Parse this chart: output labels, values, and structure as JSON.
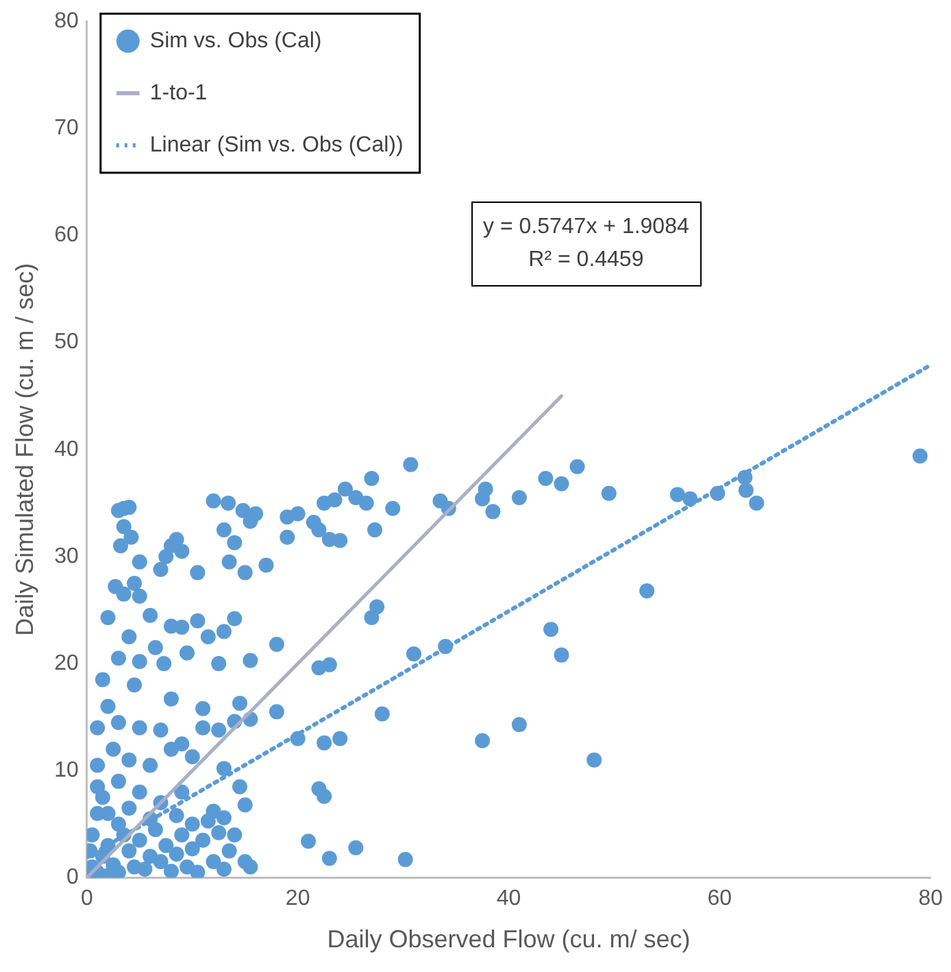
{
  "chart_data": {
    "type": "scatter",
    "xlabel": "Daily Observed Flow (cu. m/ sec)",
    "ylabel": "Daily Simulated Flow (cu. m / sec)",
    "xlim": [
      0,
      80
    ],
    "xticks": [
      0,
      20,
      40,
      60,
      80
    ],
    "ylim": [
      0,
      80
    ],
    "yticks": [
      0,
      10,
      20,
      30,
      40,
      50,
      60,
      70,
      80
    ],
    "grid": false,
    "legend": "top left",
    "annotations": [
      "y = 0.5747x + 1.9084",
      "R² = 0.4459"
    ],
    "series": [
      {
        "name": "Sim vs. Obs (Cal)",
        "type": "scatter",
        "marker": "circle",
        "color": "#5b9bd5",
        "x": [
          12,
          13.4,
          14.8,
          15.5,
          19,
          20,
          21.5,
          22.5,
          23.5,
          24.5,
          25.5,
          26.5,
          27,
          27.3,
          29,
          30.7,
          33.5,
          34.3,
          37.5,
          37.8,
          38.5,
          41,
          43.5,
          45,
          46.5,
          49.5,
          56,
          57.2,
          59.8,
          62.4,
          62.5,
          63.5,
          79,
          13,
          13.5,
          14,
          15,
          16,
          17,
          19,
          22,
          23,
          24,
          27,
          27.5,
          31,
          34,
          22,
          23,
          28,
          20,
          22.5,
          24,
          22,
          22.5,
          21,
          23,
          25.5,
          30.2,
          37.5,
          41,
          44,
          45,
          48.1,
          53.1,
          18,
          18,
          3,
          3.5,
          4,
          3.5,
          3.2,
          4.2,
          5,
          4.5,
          2.7,
          8,
          8.5,
          7.5,
          9,
          10.5,
          7,
          3.5,
          5,
          2,
          4,
          6,
          8,
          9,
          10.5,
          11.5,
          13,
          14,
          6.5,
          3,
          5,
          7.3,
          9.5,
          12.5,
          15.5,
          1.5,
          4.5,
          2,
          8,
          11,
          14.5,
          15.5,
          1,
          3,
          5,
          7,
          9,
          11,
          12.5,
          14,
          2.5,
          4,
          6,
          8,
          10,
          13,
          1,
          1,
          3,
          5,
          7,
          9,
          11.5,
          13,
          14.5,
          15,
          2,
          4,
          6,
          8.5,
          10,
          12,
          0.2,
          0.5,
          1,
          1.5,
          2,
          2.5,
          3,
          3.5,
          4,
          4.5,
          5,
          5.5,
          6,
          6.5,
          7,
          7.5,
          8,
          8.5,
          9,
          9.5,
          10,
          10.5,
          11,
          12,
          12.5,
          13,
          13.5,
          14,
          15,
          15.5,
          0.5,
          1,
          0.3,
          2,
          3,
          1.5
        ],
        "values": [
          35.2,
          35,
          34.3,
          33.3,
          33.7,
          34,
          33.2,
          35,
          35.3,
          36.3,
          35.5,
          35,
          37.3,
          32.5,
          34.5,
          38.6,
          35.2,
          34.5,
          35.4,
          36.3,
          34.2,
          35.5,
          37.3,
          36.8,
          38.4,
          35.9,
          35.8,
          35.4,
          35.9,
          37.4,
          36.2,
          35,
          39.4,
          32.5,
          29.5,
          31.3,
          28.5,
          34,
          29.2,
          31.8,
          32.5,
          31.6,
          31.5,
          24.3,
          25.3,
          20.9,
          21.6,
          19.6,
          19.9,
          15.3,
          13,
          12.6,
          13,
          8.3,
          7.6,
          3.4,
          1.8,
          2.8,
          1.7,
          12.8,
          14.3,
          23.2,
          20.8,
          11,
          26.8,
          21.8,
          15.5,
          34.3,
          34.5,
          34.6,
          32.8,
          31,
          31.8,
          29.5,
          27.5,
          27.2,
          31,
          31.6,
          30,
          30.5,
          28.5,
          28.8,
          26.5,
          26.3,
          24.3,
          22.5,
          24.5,
          23.5,
          23.4,
          24,
          22.5,
          23,
          24.2,
          21.5,
          20.5,
          20.2,
          20,
          21,
          20,
          20.3,
          18.5,
          18,
          16,
          16.7,
          15.8,
          16.3,
          14.8,
          14,
          14.5,
          14,
          13.8,
          12.5,
          14,
          13.8,
          14.6,
          12,
          11,
          10.5,
          12,
          11.3,
          10.2,
          10.5,
          8.5,
          9,
          8,
          7,
          8,
          5.3,
          5.6,
          8.5,
          6.8,
          6,
          6.5,
          5.5,
          5.8,
          5,
          6.2,
          0.2,
          1,
          0.5,
          2,
          3,
          1.2,
          0.5,
          4,
          2.5,
          1,
          3.5,
          0.8,
          2,
          4.5,
          1.5,
          3,
          0.6,
          2.2,
          4,
          1,
          2.7,
          0.5,
          3.5,
          1.5,
          4.2,
          0.8,
          2.5,
          4,
          1.5,
          1,
          4,
          6,
          2.5,
          0.2,
          5,
          7.5
        ]
      },
      {
        "name": "1-to-1",
        "type": "line",
        "marker": "none",
        "line_style": "solid",
        "color": "#a9b0c6",
        "x": [
          0,
          45
        ],
        "values": [
          0,
          45
        ]
      },
      {
        "name": "Linear (Sim vs. Obs (Cal))",
        "type": "line",
        "marker": "none",
        "line_style": "dotted",
        "color": "#5b9bd5",
        "x": [
          0,
          80
        ],
        "values": [
          1.9,
          47.9
        ]
      }
    ]
  }
}
